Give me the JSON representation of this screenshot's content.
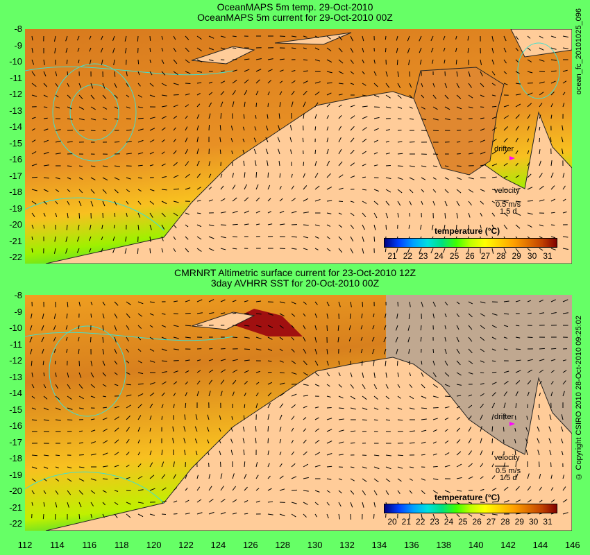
{
  "top_panel": {
    "title_line1": "OceanMAPS 5m temp. 29-Oct-2010",
    "title_line2": "OceanMAPS 5m current for 29-Oct-2010 00Z",
    "side_label": "ocean_fc_20101025_096",
    "colorbar_title": "temperature (°C)",
    "colorbar_ticks": [
      "21",
      "22",
      "23",
      "24",
      "25",
      "26",
      "27",
      "28",
      "29",
      "30",
      "31"
    ],
    "drifter_label": "drifter",
    "velocity_label": "velocity",
    "velocity_value": "0.5 m/s",
    "velocity_time": "1.5 d"
  },
  "bottom_panel": {
    "title_line1": "CMRNRT Altimetric surface current for 23-Oct-2010 12Z",
    "title_line2": "3day AVHRR SST for 20-Oct-2010 00Z",
    "side_label": "© Copyright CSIRO 2010   28-Oct-2010 09:25:02",
    "colorbar_title": "temperature (°C)",
    "colorbar_ticks": [
      "20",
      "21",
      "22",
      "23",
      "24",
      "25",
      "26",
      "27",
      "28",
      "29",
      "30",
      "31"
    ],
    "drifter_label": "drifter",
    "velocity_label": "velocity",
    "velocity_value": "0.5 m/s",
    "velocity_time": "1.5 d"
  },
  "axes": {
    "lat_ticks": [
      "-8",
      "-9",
      "-10",
      "-11",
      "-12",
      "-13",
      "-14",
      "-15",
      "-16",
      "-17",
      "-18",
      "-19",
      "-20",
      "-21",
      "-22"
    ],
    "lon_ticks": [
      "112",
      "114",
      "116",
      "118",
      "120",
      "122",
      "124",
      "126",
      "128",
      "130",
      "132",
      "134",
      "136",
      "138",
      "140",
      "142",
      "144",
      "146"
    ]
  },
  "colors": {
    "background": "#66ff66",
    "land": "#ffcc99",
    "ocean_warm": "#d4741c",
    "ocean_mid": "#f0a020",
    "ocean_cool": "#40e040",
    "contour": "#40e0d0",
    "no_data": "#c0a890",
    "drifter": "#ff00ff"
  }
}
